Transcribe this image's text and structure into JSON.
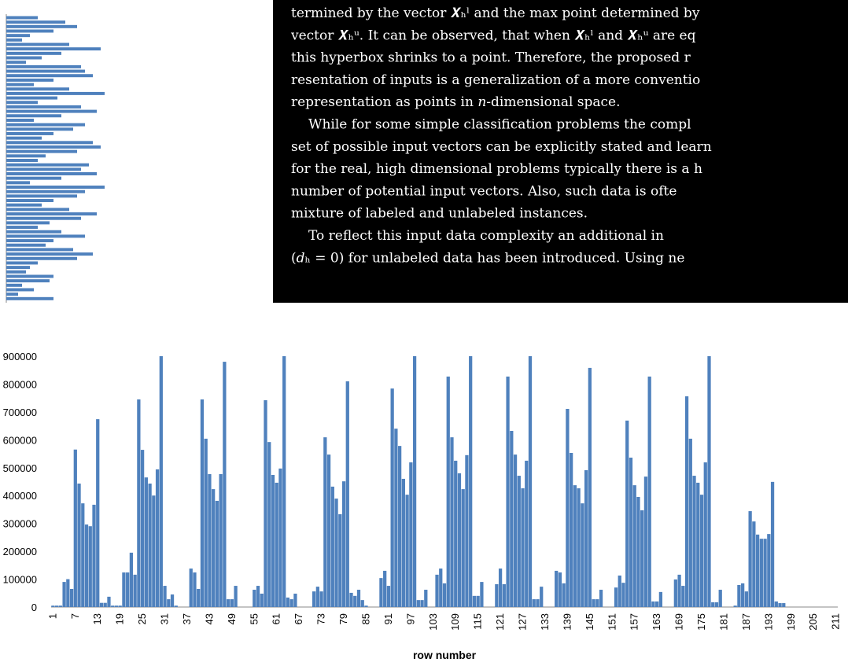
{
  "chart_data": [
    {
      "type": "hbar",
      "color": "#4f81bd",
      "values": [
        40,
        75,
        90,
        60,
        30,
        20,
        80,
        120,
        70,
        45,
        25,
        95,
        100,
        110,
        60,
        35,
        80,
        125,
        65,
        40,
        95,
        115,
        70,
        35,
        100,
        85,
        60,
        45,
        110,
        120,
        90,
        50,
        40,
        105,
        95,
        115,
        70,
        30,
        125,
        100,
        90,
        60,
        45,
        80,
        115,
        95,
        55,
        40,
        70,
        100,
        60,
        50,
        85,
        110,
        90,
        40,
        30,
        25,
        60,
        55,
        20,
        35,
        15,
        60
      ]
    },
    {
      "type": "bar",
      "color": "#4f81bd",
      "x_label": "row number",
      "ylim": [
        0,
        900000
      ],
      "yticks": [
        0,
        100000,
        200000,
        300000,
        400000,
        500000,
        600000,
        700000,
        800000,
        900000
      ],
      "categories": [
        1,
        null,
        null,
        null,
        null,
        null,
        7,
        null,
        null,
        null,
        null,
        null,
        13,
        null,
        null,
        null,
        null,
        null,
        19,
        null,
        null,
        null,
        null,
        null,
        25,
        null,
        null,
        null,
        null,
        null,
        31,
        null,
        null,
        null,
        null,
        null,
        37,
        null,
        null,
        null,
        null,
        null,
        43,
        null,
        null,
        null,
        null,
        null,
        49,
        null,
        null,
        null,
        null,
        null,
        55,
        null,
        null,
        null,
        null,
        null,
        61,
        null,
        null,
        null,
        null,
        null,
        67,
        null,
        null,
        null,
        null,
        null,
        73,
        null,
        null,
        null,
        null,
        null,
        79,
        null,
        null,
        null,
        null,
        null,
        85,
        null,
        null,
        null,
        null,
        null,
        91,
        null,
        null,
        null,
        null,
        null,
        97,
        null,
        null,
        null,
        null,
        null,
        103,
        null,
        null,
        null,
        null,
        null,
        109,
        null,
        null,
        null,
        null,
        null,
        115,
        null,
        null,
        null,
        null,
        null,
        121,
        null,
        null,
        null,
        null,
        null,
        127,
        null,
        null,
        null,
        null,
        null,
        133,
        null,
        null,
        null,
        null,
        null,
        139,
        null,
        null,
        null,
        null,
        null,
        145,
        null,
        null,
        null,
        null,
        null,
        151,
        null,
        null,
        null,
        null,
        null,
        157,
        null,
        null,
        null,
        null,
        null,
        163,
        null,
        null,
        null,
        null,
        null,
        169,
        null,
        null,
        null,
        null,
        null,
        175,
        null,
        null,
        null,
        null,
        null,
        181,
        null,
        null,
        null,
        null,
        null,
        187,
        null,
        null,
        null,
        null,
        null,
        193,
        null,
        null,
        null,
        null,
        null,
        199,
        null,
        null,
        null,
        null,
        null,
        205,
        null,
        null,
        null,
        null,
        null,
        211
      ],
      "values": [
        5000,
        5000,
        5000,
        90000,
        100000,
        65000,
        565000,
        443000,
        372000,
        296000,
        290000,
        367000,
        674000,
        15000,
        15000,
        37000,
        5000,
        5000,
        5000,
        124000,
        124000,
        195000,
        116000,
        745000,
        564000,
        465000,
        443000,
        400000,
        494000,
        900000,
        76000,
        28000,
        45000,
        5000,
        0,
        0,
        0,
        138000,
        124000,
        65000,
        745000,
        604000,
        477000,
        423000,
        381000,
        477000,
        880000,
        28000,
        28000,
        76000,
        0,
        0,
        0,
        0,
        62000,
        76000,
        48000,
        742000,
        592000,
        474000,
        446000,
        497000,
        900000,
        34000,
        28000,
        48000,
        0,
        0,
        0,
        0,
        56000,
        73000,
        56000,
        609000,
        547000,
        432000,
        389000,
        333000,
        451000,
        810000,
        51000,
        40000,
        62000,
        25000,
        5000,
        0,
        0,
        0,
        104000,
        130000,
        76000,
        784000,
        640000,
        578000,
        460000,
        403000,
        519000,
        900000,
        25000,
        25000,
        62000,
        0,
        0,
        116000,
        138000,
        85000,
        827000,
        609000,
        525000,
        480000,
        423000,
        545000,
        900000,
        40000,
        40000,
        90000,
        0,
        0,
        0,
        82000,
        138000,
        82000,
        827000,
        632000,
        547000,
        471000,
        426000,
        525000,
        900000,
        28000,
        28000,
        73000,
        0,
        0,
        0,
        130000,
        124000,
        85000,
        711000,
        553000,
        437000,
        426000,
        372000,
        491000,
        858000,
        28000,
        28000,
        62000,
        0,
        0,
        0,
        70000,
        113000,
        87000,
        669000,
        536000,
        437000,
        395000,
        347000,
        468000,
        827000,
        20000,
        20000,
        54000,
        0,
        0,
        0,
        99000,
        116000,
        76000,
        756000,
        604000,
        471000,
        446000,
        403000,
        519000,
        900000,
        17000,
        17000,
        62000,
        0,
        0,
        0,
        5000,
        79000,
        85000,
        56000,
        344000,
        307000,
        260000,
        245000,
        245000,
        262000,
        449000,
        20000,
        14000,
        14000,
        0,
        0,
        0,
        0,
        0,
        0,
        0,
        0,
        0,
        0,
        0,
        0,
        0,
        0
      ]
    }
  ],
  "document": {
    "lines": [
      "termined by the vector 𝑿ₕˡ and the max point determined by",
      "vector 𝑿ₕᵘ. It can be observed, that when 𝑿ₕˡ and 𝑿ₕᵘ are eq",
      "this hyperbox shrinks to a point. Therefore, the proposed r",
      "resentation of inputs is a generalization of a more conventio",
      "representation as points in 𝑛-dimensional space.",
      "While for some simple classification problems the compl",
      "set of possible input vectors can be explicitly stated and learn",
      "for the real, high dimensional problems typically there is a h",
      "number of potential input vectors. Also, such data is ofte",
      "mixture of labeled and unlabeled instances.",
      "To reflect this input data complexity an additional in",
      "(𝑑ₕ = 0) for unlabeled data has been introduced. Using ne"
    ]
  }
}
